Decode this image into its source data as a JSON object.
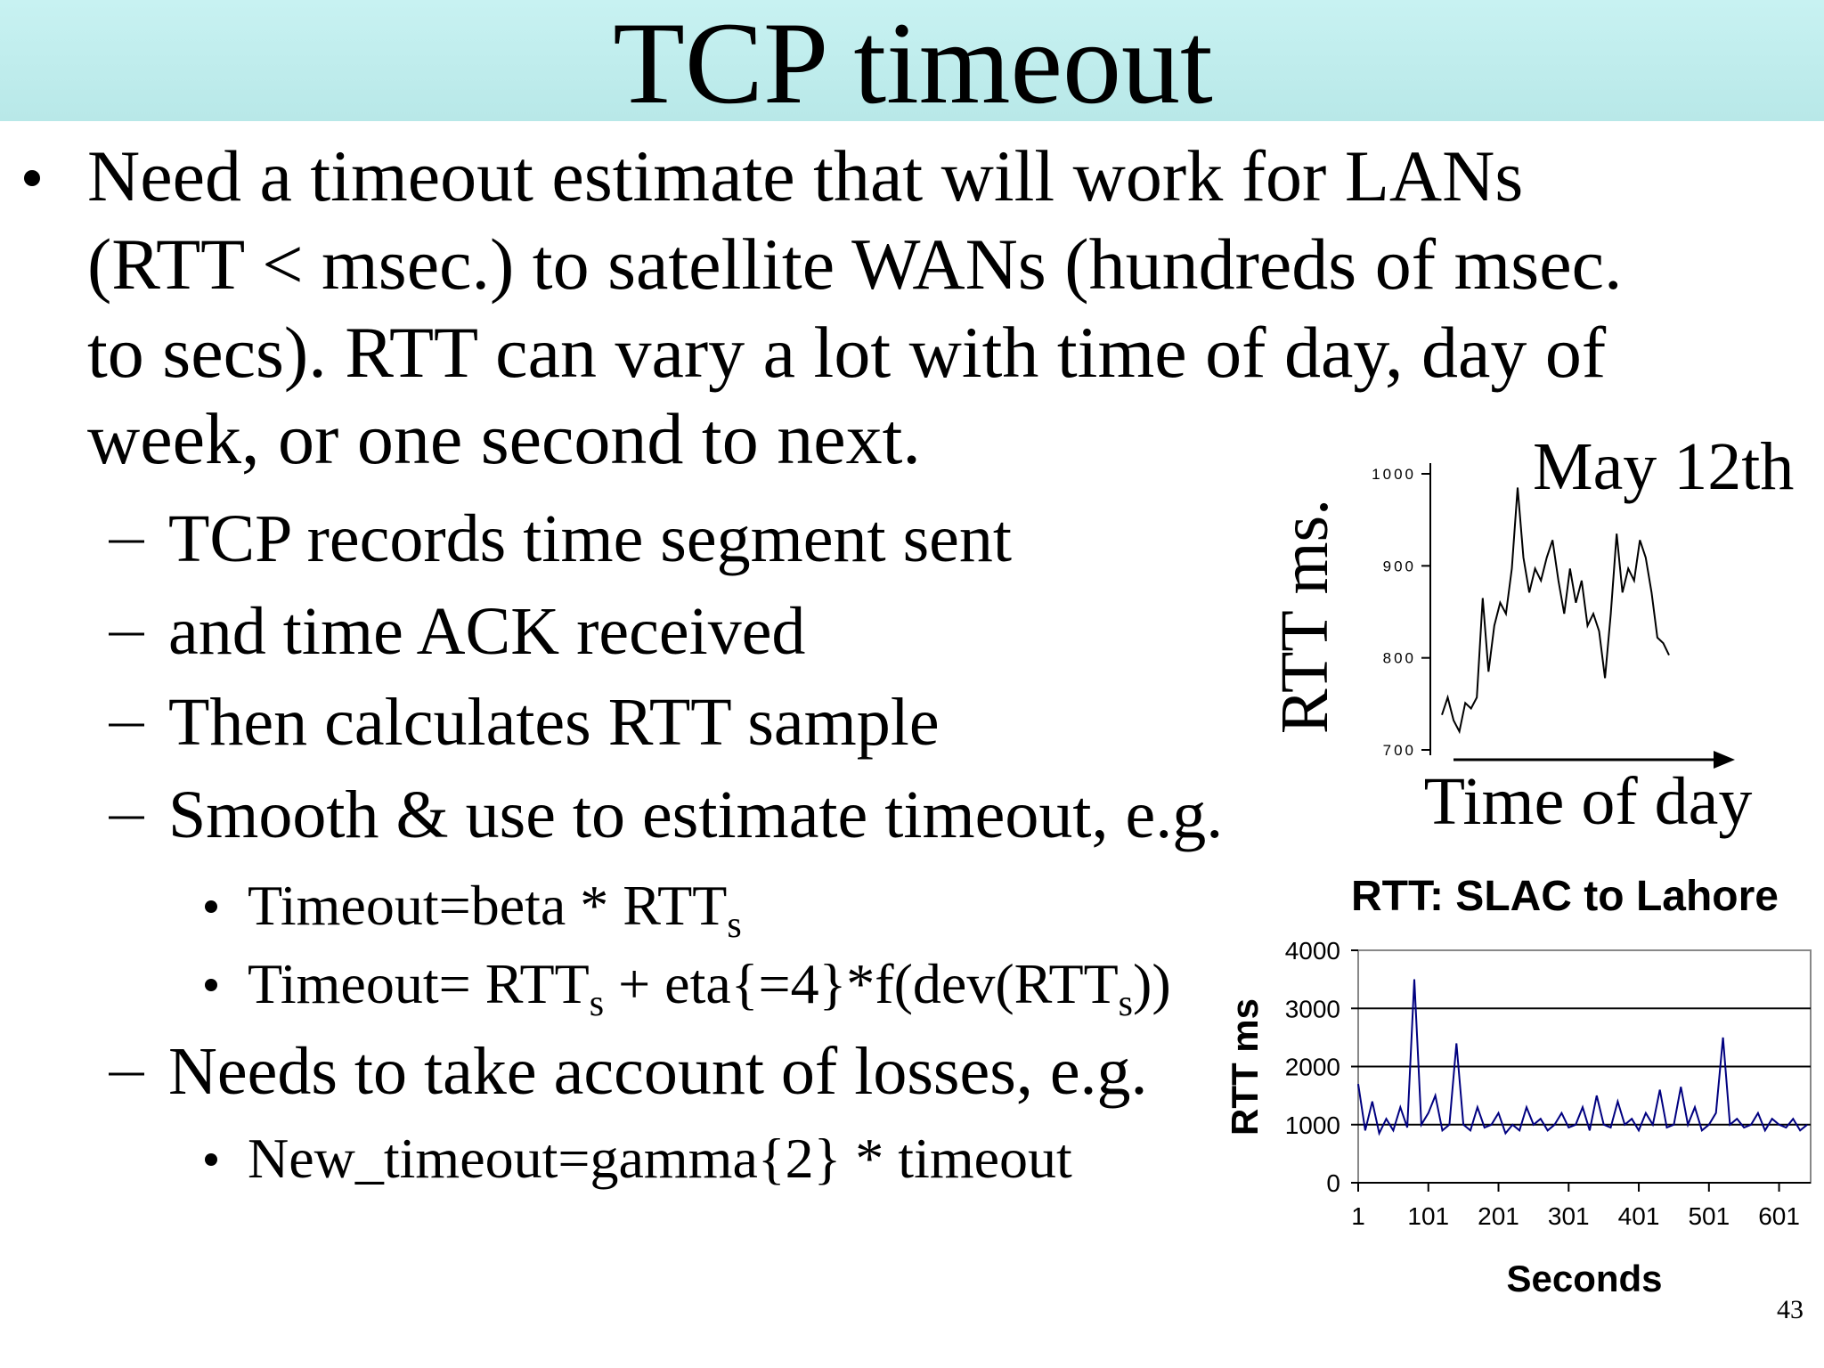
{
  "header": {
    "title": "TCP timeout"
  },
  "body": {
    "lines": [
      "Need a timeout estimate that will work for LANs",
      "(RTT < msec.) to satellite WANs (hundreds of msec.",
      "to secs). RTT can vary a lot with time of day, day of",
      "week, or one second to next."
    ],
    "sub": [
      {
        "text": "TCP records time segment sent"
      },
      {
        "text": "and time ACK received"
      },
      {
        "text": "Then calculates RTT sample"
      },
      {
        "text": "Smooth & use to estimate timeout, e.g.",
        "formulas": [
          [
            "Timeout=beta * RTT",
            "s"
          ],
          [
            "Timeout= RTT",
            "s",
            " + eta{=4}*f(dev(RTT",
            "s",
            "))"
          ]
        ]
      },
      {
        "text": "Needs to take account of losses, e.g.",
        "formulas": [
          [
            "New_timeout=gamma{2} * timeout"
          ]
        ]
      }
    ]
  },
  "page_number": "43",
  "chart_data": [
    {
      "type": "line",
      "annotation": "May 12th",
      "y_label": "RTT ms.",
      "x_label": "Time of day",
      "color": "#000000",
      "grid": false,
      "ylim": [
        700,
        1000
      ],
      "yticks": [
        700,
        800,
        900,
        1000
      ],
      "values": [
        738,
        757,
        732,
        720,
        751,
        745,
        757,
        865,
        785,
        835,
        860,
        848,
        897,
        985,
        909,
        871,
        897,
        884,
        909,
        928,
        884,
        848,
        897,
        860,
        884,
        835,
        848,
        829,
        778,
        848,
        935,
        871,
        897,
        884,
        928,
        909,
        871,
        822,
        816,
        803
      ]
    },
    {
      "type": "line",
      "title": "RTT: SLAC to Lahore",
      "y_label": "RTT ms",
      "x_label": "Seconds",
      "color": "#000080",
      "grid": true,
      "xlim": [
        1,
        646
      ],
      "xticks": [
        1,
        101,
        201,
        301,
        401,
        501,
        601
      ],
      "ylim": [
        0,
        4000
      ],
      "yticks": [
        0,
        1000,
        2000,
        3000,
        4000
      ],
      "x": [
        1,
        11,
        21,
        31,
        41,
        51,
        61,
        71,
        81,
        91,
        101,
        111,
        121,
        131,
        141,
        151,
        161,
        171,
        181,
        191,
        201,
        211,
        221,
        231,
        241,
        251,
        261,
        271,
        281,
        291,
        301,
        311,
        321,
        331,
        341,
        351,
        361,
        371,
        381,
        391,
        401,
        411,
        421,
        431,
        441,
        451,
        461,
        471,
        481,
        491,
        501,
        511,
        521,
        531,
        541,
        551,
        561,
        571,
        581,
        591,
        601,
        611,
        621,
        631,
        641
      ],
      "values": [
        1700,
        900,
        1400,
        850,
        1100,
        900,
        1300,
        950,
        3500,
        1000,
        1200,
        1500,
        900,
        1000,
        2400,
        1000,
        900,
        1300,
        950,
        1000,
        1200,
        850,
        1000,
        900,
        1300,
        1000,
        1100,
        900,
        1000,
        1200,
        950,
        1000,
        1300,
        900,
        1500,
        1000,
        950,
        1400,
        1000,
        1100,
        900,
        1200,
        1000,
        1600,
        950,
        1000,
        1650,
        1000,
        1300,
        900,
        1000,
        1200,
        2500,
        1000,
        1100,
        950,
        1000,
        1200,
        900,
        1100,
        1000,
        950,
        1100,
        900,
        1000
      ]
    }
  ]
}
